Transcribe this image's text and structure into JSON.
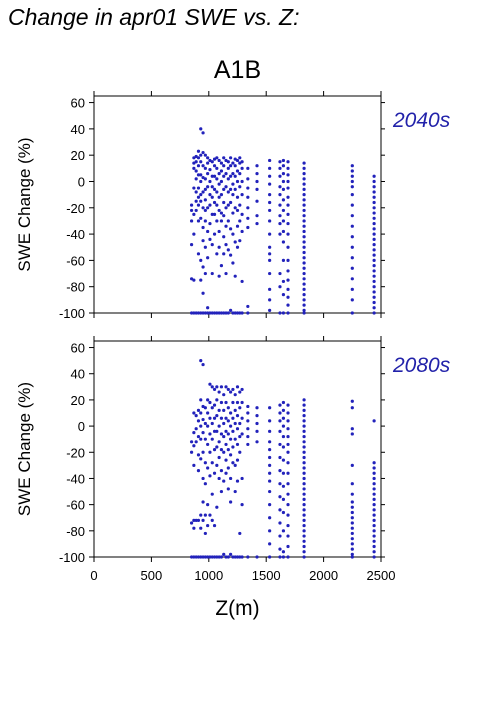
{
  "page": {
    "title": "Change in apr01 SWE vs. Z:",
    "scenario": "A1B"
  },
  "colors": {
    "points": "#2222bb",
    "axes": "#000000",
    "period_label": "#2222aa"
  },
  "chart_data": [
    {
      "type": "scatter",
      "period": "2040s",
      "ylabel": "SWE Change (%)",
      "xlabel": "",
      "xlim": [
        0,
        2500
      ],
      "ylim": [
        -100,
        65
      ],
      "xticks": [
        0,
        500,
        1000,
        1500,
        2000,
        2500
      ],
      "yticks": [
        60,
        40,
        20,
        0,
        -20,
        -40,
        -60,
        -80,
        -100
      ],
      "columns": [
        {
          "x": 850,
          "y": [
            -18,
            -22,
            -30,
            -48,
            -74,
            -100
          ]
        },
        {
          "x": 870,
          "y": [
            14,
            18,
            10,
            -5,
            -25,
            -40,
            -75,
            -100
          ]
        },
        {
          "x": 890,
          "y": [
            19,
            15,
            8,
            2,
            -8,
            -15,
            -22,
            -100
          ]
        },
        {
          "x": 910,
          "y": [
            23,
            18,
            12,
            5,
            -5,
            -12,
            -18,
            -30,
            -55,
            -100
          ]
        },
        {
          "x": 930,
          "y": [
            40,
            20,
            15,
            5,
            0,
            -10,
            -15,
            -28,
            -60,
            -75,
            -100
          ]
        },
        {
          "x": 950,
          "y": [
            37,
            22,
            12,
            3,
            -8,
            -20,
            -35,
            -45,
            -65,
            -85,
            -100
          ]
        },
        {
          "x": 970,
          "y": [
            20,
            10,
            2,
            -6,
            -14,
            -22,
            -30,
            -50,
            -70,
            -100
          ]
        },
        {
          "x": 990,
          "y": [
            18,
            14,
            6,
            -4,
            -20,
            -38,
            -58,
            -96,
            -100
          ]
        },
        {
          "x": 1010,
          "y": [
            16,
            9,
            0,
            -10,
            -18,
            -32,
            -44,
            -100
          ]
        },
        {
          "x": 1030,
          "y": [
            15,
            4,
            -4,
            -12,
            -25,
            -48,
            -70,
            -100
          ]
        },
        {
          "x": 1050,
          "y": [
            17,
            12,
            4,
            -6,
            -16,
            -25,
            -40,
            -100
          ]
        },
        {
          "x": 1070,
          "y": [
            18,
            10,
            2,
            -8,
            -18,
            -30,
            -55,
            -100
          ]
        },
        {
          "x": 1090,
          "y": [
            16,
            6,
            -2,
            -12,
            -22,
            -38,
            -50,
            -72,
            -100
          ]
        },
        {
          "x": 1110,
          "y": [
            14,
            8,
            0,
            -10,
            -24,
            -30,
            -64,
            -100
          ]
        },
        {
          "x": 1130,
          "y": [
            18,
            12,
            4,
            -6,
            -16,
            -26,
            -42,
            -55,
            -100
          ]
        },
        {
          "x": 1150,
          "y": [
            16,
            6,
            -4,
            -20,
            -34,
            -48,
            -70,
            -100
          ]
        },
        {
          "x": 1170,
          "y": [
            15,
            10,
            2,
            -8,
            -18,
            -30,
            -52,
            -100
          ]
        },
        {
          "x": 1190,
          "y": [
            18,
            12,
            4,
            -6,
            -16,
            -36,
            -56,
            -98
          ]
        },
        {
          "x": 1210,
          "y": [
            14,
            6,
            -2,
            -10,
            -24,
            -40,
            -62,
            -100
          ]
        },
        {
          "x": 1230,
          "y": [
            17,
            12,
            4,
            -6,
            -20,
            -46,
            -72,
            -100
          ]
        },
        {
          "x": 1250,
          "y": [
            16,
            8,
            0,
            -12,
            -22,
            -34,
            -50,
            -100
          ]
        },
        {
          "x": 1270,
          "y": [
            18,
            14,
            6,
            -4,
            -18,
            -30,
            -45,
            -100
          ]
        },
        {
          "x": 1290,
          "y": [
            15,
            10,
            0,
            -10,
            -25,
            -38,
            -76,
            -100
          ]
        },
        {
          "x": 1340,
          "y": [
            10,
            2,
            -5,
            -12,
            -20,
            -28,
            -35,
            -95,
            -100
          ]
        },
        {
          "x": 1420,
          "y": [
            12,
            6,
            0,
            -6,
            -15,
            -26,
            -32
          ]
        },
        {
          "x": 1530,
          "y": [
            16,
            10,
            4,
            -2,
            -10,
            -16,
            -22,
            -30,
            -40,
            -50,
            -55,
            -60,
            -70,
            -82,
            -90,
            -98
          ]
        },
        {
          "x": 1620,
          "y": [
            15,
            10,
            4,
            -4,
            -10,
            -18,
            -26,
            -32,
            -40,
            -70,
            -80,
            -100
          ]
        },
        {
          "x": 1650,
          "y": [
            16,
            12,
            6,
            0,
            -6,
            -14,
            -22,
            -30,
            -38,
            -46,
            -60,
            -76,
            -86,
            -100
          ]
        },
        {
          "x": 1690,
          "y": [
            15,
            10,
            5,
            0,
            -5,
            -12,
            -18,
            -25,
            -32,
            -40,
            -50,
            -60,
            -68,
            -75,
            -82,
            -88,
            -94,
            -100
          ]
        },
        {
          "x": 1830,
          "y": [
            14,
            10,
            6,
            2,
            -2,
            -6,
            -10,
            -14,
            -18,
            -22,
            -26,
            -30,
            -34,
            -38,
            -42,
            -46,
            -50,
            -54,
            -58,
            -62,
            -66,
            -70,
            -74,
            -78,
            -82,
            -86,
            -90,
            -94,
            -98,
            -100
          ]
        },
        {
          "x": 2250,
          "y": [
            12,
            8,
            4,
            0,
            -4,
            -10,
            -18,
            -26,
            -34,
            -42,
            -50,
            -58,
            -66,
            -74,
            -82,
            -90,
            -100
          ]
        },
        {
          "x": 2440,
          "y": [
            4,
            0,
            -4,
            -8,
            -12,
            -16,
            -20,
            -24,
            -28,
            -32,
            -36,
            -40,
            -44,
            -48,
            -52,
            -56,
            -60,
            -64,
            -68,
            -72,
            -76,
            -80,
            -84,
            -88,
            -92,
            -96,
            -100
          ]
        }
      ]
    },
    {
      "type": "scatter",
      "period": "2080s",
      "ylabel": "SWE Change (%)",
      "xlabel": "Z(m)",
      "xlim": [
        0,
        2500
      ],
      "ylim": [
        -100,
        65
      ],
      "xticks": [
        0,
        500,
        1000,
        1500,
        2000,
        2500
      ],
      "yticks": [
        60,
        40,
        20,
        0,
        -20,
        -40,
        -60,
        -80,
        -100
      ],
      "columns": [
        {
          "x": 850,
          "y": [
            -12,
            -20,
            -74,
            -100
          ]
        },
        {
          "x": 870,
          "y": [
            10,
            -5,
            -15,
            -30,
            -72,
            -78,
            -100
          ]
        },
        {
          "x": 890,
          "y": [
            8,
            -2,
            -12,
            -72,
            -100
          ]
        },
        {
          "x": 910,
          "y": [
            12,
            4,
            -8,
            -22,
            -34,
            -72,
            -100
          ]
        },
        {
          "x": 930,
          "y": [
            50,
            20,
            10,
            0,
            -10,
            -25,
            -68,
            -78,
            -100
          ]
        },
        {
          "x": 950,
          "y": [
            47,
            15,
            5,
            -5,
            -20,
            -40,
            -58,
            -72,
            -100
          ]
        },
        {
          "x": 970,
          "y": [
            14,
            2,
            -10,
            -28,
            -44,
            -68,
            -82,
            -100
          ]
        },
        {
          "x": 990,
          "y": [
            20,
            10,
            0,
            -14,
            -32,
            -60,
            -76,
            -100
          ]
        },
        {
          "x": 1010,
          "y": [
            32,
            18,
            6,
            -6,
            -20,
            -38,
            -68,
            -100
          ]
        },
        {
          "x": 1030,
          "y": [
            30,
            14,
            2,
            -10,
            -28,
            -52,
            -72,
            -100
          ]
        },
        {
          "x": 1050,
          "y": [
            28,
            16,
            6,
            -4,
            -18,
            -36,
            -76,
            -100
          ]
        },
        {
          "x": 1070,
          "y": [
            30,
            20,
            8,
            -4,
            -16,
            -30,
            -62,
            -100
          ]
        },
        {
          "x": 1090,
          "y": [
            26,
            12,
            0,
            -12,
            -24,
            -40,
            -100
          ]
        },
        {
          "x": 1110,
          "y": [
            30,
            18,
            6,
            -6,
            -18,
            -34,
            -50,
            -100
          ]
        },
        {
          "x": 1130,
          "y": [
            24,
            12,
            2,
            -8,
            -20,
            -42,
            -98
          ]
        },
        {
          "x": 1150,
          "y": [
            30,
            18,
            6,
            -4,
            -14,
            -26,
            -36,
            -100
          ]
        },
        {
          "x": 1170,
          "y": [
            28,
            14,
            4,
            -6,
            -18,
            -32,
            -48,
            -100
          ]
        },
        {
          "x": 1190,
          "y": [
            26,
            10,
            0,
            -10,
            -22,
            -40,
            -58,
            -98
          ]
        },
        {
          "x": 1210,
          "y": [
            28,
            18,
            6,
            -4,
            -16,
            -28,
            -100
          ]
        },
        {
          "x": 1230,
          "y": [
            24,
            12,
            2,
            -10,
            -30,
            -50,
            -100
          ]
        },
        {
          "x": 1250,
          "y": [
            30,
            18,
            8,
            -2,
            -14,
            -26,
            -42,
            -100
          ]
        },
        {
          "x": 1270,
          "y": [
            26,
            14,
            2,
            -8,
            -20,
            -82,
            -100
          ]
        },
        {
          "x": 1290,
          "y": [
            28,
            18,
            6,
            -6,
            -40,
            -60,
            -100
          ]
        },
        {
          "x": 1340,
          "y": [
            15,
            10,
            4,
            -2,
            -8,
            -14,
            -100
          ]
        },
        {
          "x": 1420,
          "y": [
            14,
            8,
            2,
            -4,
            -12,
            -100
          ]
        },
        {
          "x": 1530,
          "y": [
            14,
            4,
            -4,
            -12,
            -18,
            -24,
            -30,
            -36,
            -42,
            -50,
            -60,
            -70,
            -80,
            -90,
            -100
          ]
        },
        {
          "x": 1620,
          "y": [
            16,
            10,
            4,
            -4,
            -14,
            -24,
            -34,
            -44,
            -54,
            -64,
            -74,
            -84,
            -94,
            -100
          ]
        },
        {
          "x": 1650,
          "y": [
            18,
            12,
            6,
            0,
            -8,
            -16,
            -26,
            -36,
            -46,
            -56,
            -66,
            -80,
            -96,
            -100
          ]
        },
        {
          "x": 1690,
          "y": [
            16,
            10,
            4,
            -2,
            -8,
            -14,
            -20,
            -28,
            -36,
            -44,
            -52,
            -60,
            -68,
            -76,
            -84,
            -92,
            -100
          ]
        },
        {
          "x": 1830,
          "y": [
            20,
            16,
            12,
            8,
            4,
            0,
            -4,
            -8,
            -12,
            -16,
            -20,
            -24,
            -28,
            -32,
            -36,
            -40,
            -44,
            -48,
            -52,
            -56,
            -60,
            -64,
            -68,
            -72,
            -76,
            -80,
            -84,
            -88,
            -92,
            -96,
            -100
          ]
        },
        {
          "x": 2250,
          "y": [
            19,
            14,
            -2,
            -6,
            -30,
            -44,
            -52,
            -58,
            -62,
            -66,
            -70,
            -74,
            -78,
            -82,
            -86,
            -90,
            -94,
            -98,
            -100
          ]
        },
        {
          "x": 2440,
          "y": [
            4,
            -28,
            -32,
            -36,
            -40,
            -44,
            -48,
            -52,
            -56,
            -60,
            -64,
            -68,
            -72,
            -76,
            -80,
            -84,
            -88,
            -92,
            -96,
            -100
          ]
        }
      ]
    }
  ]
}
